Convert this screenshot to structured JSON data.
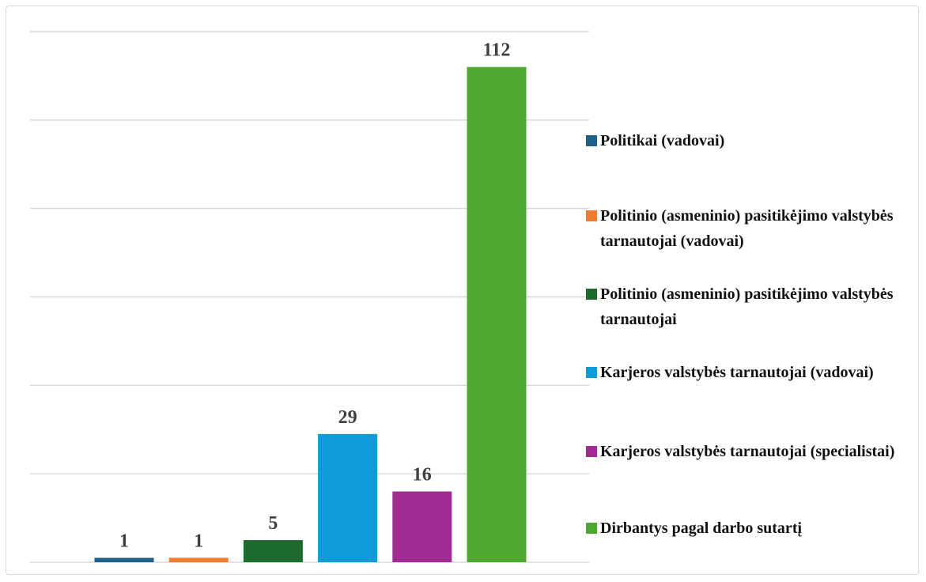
{
  "chart_data": {
    "type": "bar",
    "series": [
      {
        "name": "Politikai (vadovai)",
        "color": "#1f5f8b",
        "values": [
          1
        ]
      },
      {
        "name": "Politinio (asmeninio) pasitikėjimo valstybės tarnautojai (vadovai)",
        "color": "#ed7d31",
        "values": [
          1
        ]
      },
      {
        "name": "Politinio (asmeninio) pasitikėjimo valstybės tarnautojai",
        "color": "#1e6b2e",
        "values": [
          5
        ]
      },
      {
        "name": "Karjeros valstybės tarnautojai (vadovai)",
        "color": "#109bd8",
        "values": [
          29
        ]
      },
      {
        "name": "Karjeros valstybės tarnautojai (specialistai)",
        "color": "#a02b93",
        "values": [
          16
        ]
      },
      {
        "name": "Dirbantys pagal darbo sutartį",
        "color": "#4ea72e",
        "values": [
          112
        ]
      }
    ],
    "ylim": [
      0,
      120
    ],
    "yticks": [
      0,
      20,
      40,
      60,
      80,
      100,
      120
    ],
    "grid": true,
    "legend": "right"
  }
}
